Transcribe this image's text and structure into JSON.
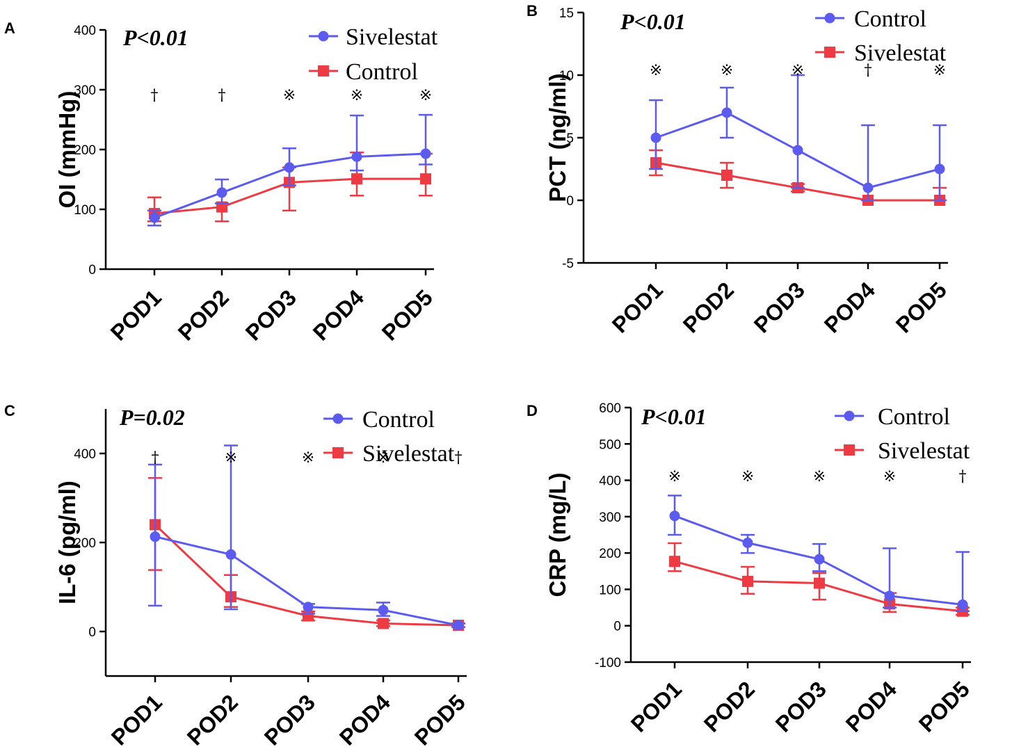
{
  "colors": {
    "blue": "#5b5bf0",
    "red": "#ee3b43",
    "axis": "#000000"
  },
  "chart_data": [
    {
      "type": "line",
      "panel": "A",
      "categories": [
        "POD1",
        "POD2",
        "POD3",
        "POD4",
        "POD5"
      ],
      "ylabel": "OI (mmHg)",
      "ylim": [
        0,
        400
      ],
      "yticks": [
        "0",
        "100",
        "200",
        "300",
        "400"
      ],
      "p_value": "P<0.01",
      "legend_order": [
        "Sivelestat",
        "Control"
      ],
      "series": [
        {
          "name": "Sivelestat",
          "color": "blue",
          "marker": "circle",
          "values": [
            86,
            128,
            170,
            188,
            193
          ],
          "err_low": [
            73,
            110,
            140,
            165,
            175
          ],
          "err_high": [
            98,
            150,
            202,
            257,
            258
          ]
        },
        {
          "name": "Control",
          "color": "red",
          "marker": "square",
          "values": [
            93,
            104,
            145,
            151,
            151
          ],
          "err_low": [
            80,
            80,
            98,
            123,
            123
          ],
          "err_high": [
            120,
            110,
            170,
            195,
            193
          ]
        }
      ],
      "significance": [
        "†",
        "†",
        "※",
        "※",
        "※"
      ]
    },
    {
      "type": "line",
      "panel": "B",
      "categories": [
        "POD1",
        "POD2",
        "POD3",
        "POD4",
        "POD5"
      ],
      "ylabel": "PCT (ng/ml)",
      "ylim": [
        -5,
        15
      ],
      "yticks": [
        "-5",
        "0",
        "5",
        "10",
        "15"
      ],
      "p_value": "P<0.01",
      "legend_order": [
        "Control",
        "Sivelestat"
      ],
      "series": [
        {
          "name": "Control",
          "color": "blue",
          "marker": "circle",
          "values": [
            5,
            7,
            4,
            1,
            2.5
          ],
          "err_low": [
            2.5,
            5,
            1,
            0,
            0
          ],
          "err_high": [
            8,
            9,
            10,
            6,
            6
          ]
        },
        {
          "name": "Sivelestat",
          "color": "red",
          "marker": "square",
          "values": [
            3,
            2,
            1,
            0,
            0
          ],
          "err_low": [
            2,
            1,
            0.7,
            0,
            0
          ],
          "err_high": [
            4,
            3,
            1.3,
            0,
            1
          ]
        }
      ],
      "significance": [
        "※",
        "※",
        "※",
        "†",
        "※"
      ]
    },
    {
      "type": "line",
      "panel": "C",
      "categories": [
        "POD1",
        "POD2",
        "POD3",
        "POD4",
        "POD5"
      ],
      "ylabel": "IL-6 (pg/ml)",
      "ylim": [
        -100,
        500
      ],
      "yticks": [
        "0",
        "200",
        "400"
      ],
      "yticks_values": [
        0,
        200,
        400
      ],
      "p_value": "P=0.02",
      "legend_order": [
        "Control",
        "Sivelestat"
      ],
      "series": [
        {
          "name": "Control",
          "color": "blue",
          "marker": "circle",
          "values": [
            213,
            173,
            55,
            48,
            14
          ],
          "err_low": [
            58,
            50,
            40,
            35,
            10
          ],
          "err_high": [
            375,
            418,
            62,
            65,
            18
          ]
        },
        {
          "name": "Sivelestat",
          "color": "red",
          "marker": "square",
          "values": [
            240,
            78,
            35,
            18,
            14
          ],
          "err_low": [
            138,
            55,
            25,
            12,
            10
          ],
          "err_high": [
            345,
            127,
            45,
            25,
            18
          ]
        }
      ],
      "significance": [
        "†",
        "※",
        "※",
        "※",
        "†"
      ]
    },
    {
      "type": "line",
      "panel": "D",
      "categories": [
        "POD1",
        "POD2",
        "POD3",
        "POD4",
        "POD5"
      ],
      "ylabel": "CRP (mg/L)",
      "ylim": [
        -100,
        600
      ],
      "yticks": [
        "-100",
        "0",
        "100",
        "200",
        "300",
        "400",
        "500",
        "600"
      ],
      "p_value": "P<0.01",
      "legend_order": [
        "Control",
        "Sivelestat"
      ],
      "series": [
        {
          "name": "Control",
          "color": "blue",
          "marker": "circle",
          "values": [
            302,
            228,
            183,
            82,
            58
          ],
          "err_low": [
            250,
            200,
            150,
            50,
            40
          ],
          "err_high": [
            358,
            250,
            225,
            213,
            203
          ]
        },
        {
          "name": "Sivelestat",
          "color": "red",
          "marker": "square",
          "values": [
            177,
            122,
            117,
            60,
            40
          ],
          "err_low": [
            150,
            88,
            72,
            38,
            30
          ],
          "err_high": [
            227,
            162,
            145,
            90,
            50
          ]
        }
      ],
      "significance": [
        "※",
        "※",
        "※",
        "※",
        "†"
      ]
    }
  ]
}
